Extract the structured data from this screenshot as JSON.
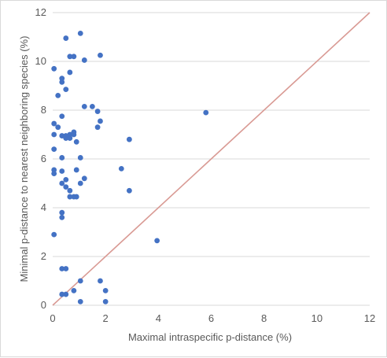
{
  "chart_data": {
    "type": "scatter",
    "title": "",
    "xlabel": "Maximal intraspecific p-distance (%)",
    "ylabel": "Minimal p-distance to nearest neighboring species (%)",
    "xlim": [
      0,
      12
    ],
    "ylim": [
      0,
      12
    ],
    "x_ticks": [
      "0",
      "2",
      "4",
      "6",
      "8",
      "10",
      "12"
    ],
    "y_ticks": [
      "0",
      "2",
      "4",
      "6",
      "8",
      "10",
      "12"
    ],
    "grid": "horizontal",
    "legend": "none",
    "reference_line": {
      "from": [
        0,
        0
      ],
      "to": [
        12,
        12
      ],
      "color": "#D99A94"
    },
    "marker_color": "#4472C4",
    "series": [
      {
        "points": [
          [
            0.05,
            2.9
          ],
          [
            0.05,
            5.55
          ],
          [
            0.05,
            5.4
          ],
          [
            0.05,
            6.4
          ],
          [
            0.05,
            7.0
          ],
          [
            0.05,
            7.45
          ],
          [
            0.05,
            9.7
          ],
          [
            0.2,
            7.3
          ],
          [
            0.2,
            8.6
          ],
          [
            0.35,
            9.3
          ],
          [
            0.35,
            9.15
          ],
          [
            0.35,
            7.75
          ],
          [
            0.35,
            6.95
          ],
          [
            0.35,
            6.05
          ],
          [
            0.35,
            5.5
          ],
          [
            0.35,
            5.0
          ],
          [
            0.35,
            3.8
          ],
          [
            0.35,
            3.6
          ],
          [
            0.35,
            1.5
          ],
          [
            0.35,
            0.45
          ],
          [
            0.5,
            10.95
          ],
          [
            0.5,
            8.85
          ],
          [
            0.5,
            6.95
          ],
          [
            0.5,
            6.85
          ],
          [
            0.5,
            5.15
          ],
          [
            0.5,
            4.85
          ],
          [
            0.5,
            1.5
          ],
          [
            0.5,
            0.45
          ],
          [
            0.65,
            10.2
          ],
          [
            0.65,
            9.55
          ],
          [
            0.65,
            7.0
          ],
          [
            0.65,
            6.85
          ],
          [
            0.65,
            4.7
          ],
          [
            0.65,
            4.45
          ],
          [
            0.8,
            10.2
          ],
          [
            0.8,
            7.1
          ],
          [
            0.8,
            7.0
          ],
          [
            0.8,
            4.45
          ],
          [
            0.8,
            0.6
          ],
          [
            0.9,
            6.7
          ],
          [
            0.9,
            5.55
          ],
          [
            0.9,
            4.45
          ],
          [
            1.05,
            11.15
          ],
          [
            1.05,
            6.05
          ],
          [
            1.05,
            5.0
          ],
          [
            1.05,
            1.0
          ],
          [
            1.05,
            0.15
          ],
          [
            1.2,
            10.05
          ],
          [
            1.2,
            8.15
          ],
          [
            1.2,
            5.2
          ],
          [
            1.5,
            8.15
          ],
          [
            1.7,
            7.95
          ],
          [
            1.7,
            7.3
          ],
          [
            1.8,
            10.25
          ],
          [
            1.8,
            7.55
          ],
          [
            1.8,
            1.0
          ],
          [
            2.0,
            0.6
          ],
          [
            2.0,
            0.15
          ],
          [
            2.6,
            5.6
          ],
          [
            2.9,
            6.8
          ],
          [
            2.9,
            4.7
          ],
          [
            3.95,
            2.65
          ],
          [
            5.8,
            7.9
          ]
        ]
      }
    ]
  }
}
